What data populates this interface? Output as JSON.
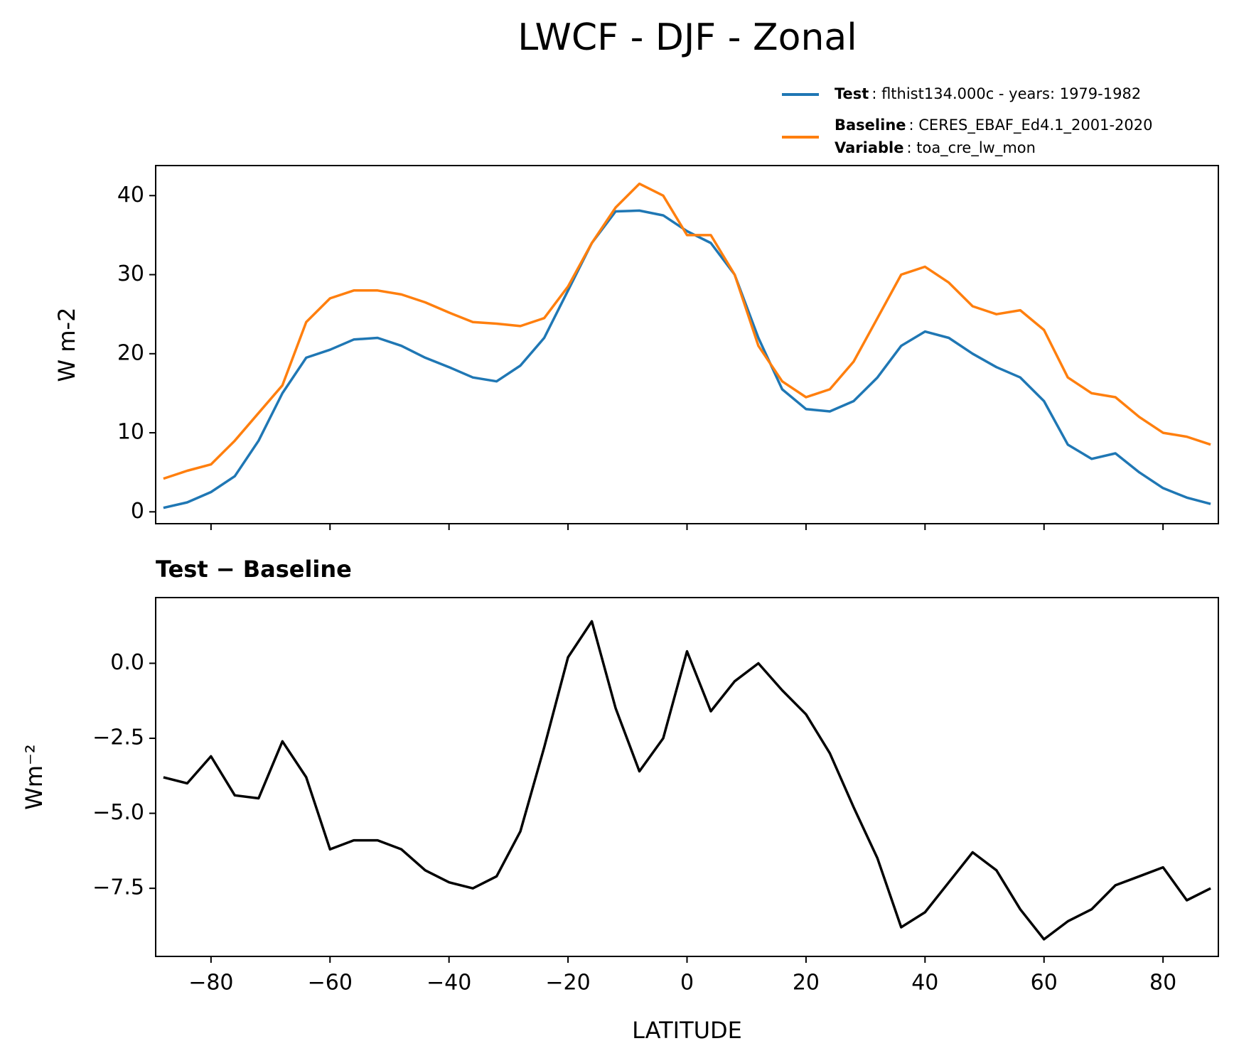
{
  "chart_data": [
    {
      "type": "line",
      "title": "LWCF - DJF - Zonal",
      "ylabel": "W m-2",
      "x": [
        -88,
        -84,
        -80,
        -76,
        -72,
        -68,
        -64,
        -60,
        -56,
        -52,
        -48,
        -44,
        -40,
        -36,
        -32,
        -28,
        -24,
        -20,
        -16,
        -12,
        -8,
        -4,
        0,
        4,
        8,
        12,
        16,
        20,
        24,
        28,
        32,
        36,
        40,
        44,
        48,
        52,
        56,
        60,
        64,
        68,
        72,
        76,
        80,
        84,
        88
      ],
      "series": [
        {
          "name": "Test",
          "label": ": flthist134.000c - years: 1979-1982",
          "color": "#1f77b4",
          "values": [
            0.5,
            1.2,
            2.5,
            4.5,
            9,
            15,
            19.5,
            20.5,
            21.8,
            22,
            21,
            19.5,
            18.3,
            17,
            16.5,
            18.5,
            22,
            28,
            34,
            38,
            38.1,
            37.5,
            35.5,
            34,
            30,
            22,
            15.5,
            13,
            12.7,
            14,
            17,
            21,
            22.8,
            22,
            20,
            18.3,
            17,
            14,
            8.5,
            6.7,
            7.4,
            5,
            3,
            1.8,
            1.0
          ]
        },
        {
          "name": "Baseline",
          "label": ": CERES_EBAF_Ed4.1_2001-2020",
          "color": "#ff7f0e",
          "values": [
            4.2,
            5.2,
            6,
            9,
            12.5,
            16,
            24,
            27,
            28,
            28,
            27.5,
            26.5,
            25.2,
            24,
            23.8,
            23.5,
            24.5,
            28.5,
            34,
            38.5,
            41.5,
            40,
            35,
            35,
            30,
            21,
            16.5,
            14.5,
            15.5,
            19,
            24.5,
            30,
            31,
            29,
            26,
            25,
            25.5,
            23,
            17,
            15,
            14.5,
            12,
            10,
            9.5,
            8.5
          ]
        }
      ],
      "legend_extra": {
        "name": "Variable",
        "label": ": toa_cre_lw_mon"
      },
      "xlim": [
        -89.3,
        89.3
      ],
      "xticks": [
        -80,
        -60,
        -40,
        -20,
        0,
        20,
        40,
        60,
        80
      ],
      "ylim": [
        -1.5,
        43.8
      ],
      "yticks": [
        0,
        10,
        20,
        30,
        40
      ]
    },
    {
      "type": "line",
      "title": "Test − Baseline",
      "xlabel": "LATITUDE",
      "ylabel": "Wm⁻²",
      "x": [
        -88,
        -84,
        -80,
        -76,
        -72,
        -68,
        -64,
        -60,
        -56,
        -52,
        -48,
        -44,
        -40,
        -36,
        -32,
        -28,
        -24,
        -20,
        -16,
        -12,
        -8,
        -4,
        0,
        4,
        8,
        12,
        16,
        20,
        24,
        28,
        32,
        36,
        40,
        44,
        48,
        52,
        56,
        60,
        64,
        68,
        72,
        76,
        80,
        84,
        88
      ],
      "series": [
        {
          "color": "#000000",
          "values": [
            -3.8,
            -4.0,
            -3.1,
            -4.4,
            -4.5,
            -2.6,
            -3.8,
            -6.2,
            -5.9,
            -5.9,
            -6.2,
            -6.9,
            -7.3,
            -7.5,
            -7.1,
            -5.6,
            -2.8,
            0.2,
            1.4,
            -1.5,
            -3.6,
            -2.5,
            0.4,
            -1.6,
            -0.6,
            0.0,
            -0.9,
            -1.7,
            -3.0,
            -4.8,
            -6.5,
            -8.8,
            -8.3,
            -7.3,
            -6.3,
            -6.9,
            -8.2,
            -9.2,
            -8.6,
            -8.2,
            -7.4,
            -7.1,
            -6.8,
            -7.9,
            -7.5
          ]
        }
      ],
      "xlim": [
        -89.3,
        89.3
      ],
      "xticks": [
        {
          "value": -80,
          "label": "−80"
        },
        {
          "value": -60,
          "label": "−60"
        },
        {
          "value": -40,
          "label": "−40"
        },
        {
          "value": -20,
          "label": "−20"
        },
        0,
        20,
        40,
        60,
        80
      ],
      "ylim": [
        -9.77,
        2.19
      ],
      "yticks": [
        {
          "value": 0,
          "label": "0.0"
        },
        {
          "value": -2.5,
          "label": "−2.5"
        },
        {
          "value": -5,
          "label": "−5.0"
        },
        {
          "value": -7.5,
          "label": "−7.5"
        }
      ]
    }
  ]
}
